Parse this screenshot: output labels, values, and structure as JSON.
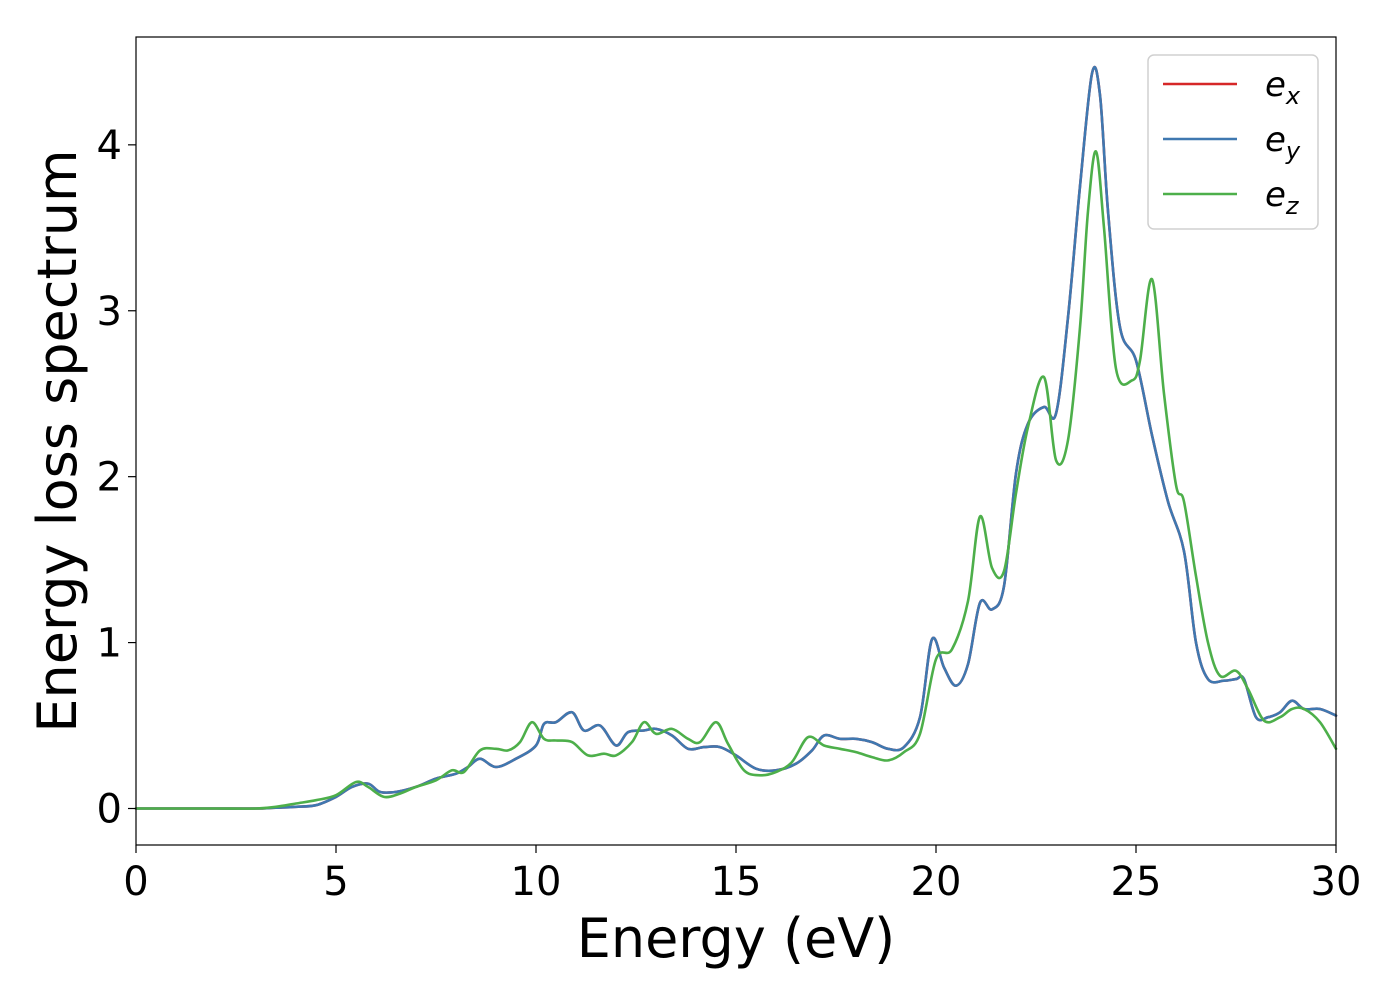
{
  "chart_data": {
    "type": "line",
    "title": "",
    "xlabel": "Energy (eV)",
    "ylabel": "Energy loss spectrum",
    "xlim": [
      0,
      30
    ],
    "ylim": [
      -0.22,
      4.65
    ],
    "xticks": [
      0,
      5,
      10,
      15,
      20,
      25,
      30
    ],
    "yticks": [
      0,
      1,
      2,
      3,
      4
    ],
    "grid": false,
    "legend_position": "top-right",
    "series": [
      {
        "name": "e",
        "subscript": "x",
        "color": "#d62728",
        "x": [
          0,
          1,
          2,
          3,
          3.5,
          4,
          4.5,
          5,
          5.4,
          5.8,
          6.1,
          6.5,
          7,
          7.5,
          8,
          8.3,
          8.6,
          9,
          9.5,
          10,
          10.2,
          10.5,
          10.9,
          11.2,
          11.6,
          12,
          12.3,
          12.7,
          13,
          13.4,
          13.8,
          14.2,
          14.6,
          15,
          15.5,
          16,
          16.5,
          16.9,
          17.2,
          17.6,
          18,
          18.4,
          18.8,
          19.2,
          19.6,
          19.9,
          20.2,
          20.5,
          20.8,
          21.1,
          21.4,
          21.7,
          22,
          22.3,
          22.7,
          23,
          23.3,
          23.6,
          23.9,
          24.1,
          24.3,
          24.6,
          25,
          25.4,
          25.8,
          26.2,
          26.5,
          26.8,
          27.2,
          27.5,
          27.7,
          28,
          28.3,
          28.6,
          28.9,
          29.2,
          29.6,
          30
        ],
        "values": [
          0,
          0,
          0,
          0,
          0.005,
          0.01,
          0.02,
          0.07,
          0.13,
          0.15,
          0.1,
          0.1,
          0.13,
          0.18,
          0.21,
          0.25,
          0.3,
          0.25,
          0.3,
          0.38,
          0.51,
          0.52,
          0.58,
          0.47,
          0.5,
          0.38,
          0.46,
          0.47,
          0.48,
          0.44,
          0.36,
          0.37,
          0.37,
          0.32,
          0.24,
          0.23,
          0.27,
          0.35,
          0.44,
          0.42,
          0.42,
          0.4,
          0.36,
          0.37,
          0.55,
          1.02,
          0.85,
          0.74,
          0.87,
          1.24,
          1.2,
          1.34,
          2.02,
          2.32,
          2.42,
          2.38,
          2.96,
          3.75,
          4.43,
          4.3,
          3.6,
          2.9,
          2.7,
          2.25,
          1.85,
          1.55,
          1.0,
          0.78,
          0.77,
          0.78,
          0.78,
          0.55,
          0.55,
          0.58,
          0.65,
          0.6,
          0.6,
          0.56
        ]
      },
      {
        "name": "e",
        "subscript": "y",
        "color": "#3f78b0",
        "x": [
          0,
          1,
          2,
          3,
          3.5,
          4,
          4.5,
          5,
          5.4,
          5.8,
          6.1,
          6.5,
          7,
          7.5,
          8,
          8.3,
          8.6,
          9,
          9.5,
          10,
          10.2,
          10.5,
          10.9,
          11.2,
          11.6,
          12,
          12.3,
          12.7,
          13,
          13.4,
          13.8,
          14.2,
          14.6,
          15,
          15.5,
          16,
          16.5,
          16.9,
          17.2,
          17.6,
          18,
          18.4,
          18.8,
          19.2,
          19.6,
          19.9,
          20.2,
          20.5,
          20.8,
          21.1,
          21.4,
          21.7,
          22,
          22.3,
          22.7,
          23,
          23.3,
          23.6,
          23.9,
          24.1,
          24.3,
          24.6,
          25,
          25.4,
          25.8,
          26.2,
          26.5,
          26.8,
          27.2,
          27.5,
          27.7,
          28,
          28.3,
          28.6,
          28.9,
          29.2,
          29.6,
          30
        ],
        "values": [
          0,
          0,
          0,
          0,
          0.005,
          0.01,
          0.02,
          0.07,
          0.13,
          0.15,
          0.1,
          0.1,
          0.13,
          0.18,
          0.21,
          0.25,
          0.3,
          0.25,
          0.3,
          0.38,
          0.51,
          0.52,
          0.58,
          0.47,
          0.5,
          0.38,
          0.46,
          0.47,
          0.48,
          0.44,
          0.36,
          0.37,
          0.37,
          0.32,
          0.24,
          0.23,
          0.27,
          0.35,
          0.44,
          0.42,
          0.42,
          0.4,
          0.36,
          0.37,
          0.55,
          1.02,
          0.85,
          0.74,
          0.87,
          1.24,
          1.2,
          1.34,
          2.02,
          2.32,
          2.42,
          2.38,
          2.96,
          3.75,
          4.43,
          4.3,
          3.6,
          2.9,
          2.7,
          2.25,
          1.85,
          1.55,
          1.0,
          0.78,
          0.77,
          0.78,
          0.78,
          0.55,
          0.55,
          0.58,
          0.65,
          0.6,
          0.6,
          0.56
        ]
      },
      {
        "name": "e",
        "subscript": "z",
        "color": "#4daf4a",
        "x": [
          0,
          1,
          2,
          3,
          3.5,
          4,
          4.5,
          5,
          5.5,
          5.8,
          6.2,
          6.6,
          7,
          7.5,
          7.9,
          8.2,
          8.6,
          9,
          9.3,
          9.6,
          9.9,
          10.2,
          10.5,
          10.9,
          11.3,
          11.7,
          12,
          12.4,
          12.7,
          13,
          13.4,
          13.8,
          14.1,
          14.5,
          14.8,
          15.2,
          15.6,
          16,
          16.4,
          16.8,
          17.2,
          17.6,
          18,
          18.4,
          18.8,
          19.2,
          19.6,
          20,
          20.4,
          20.8,
          21.1,
          21.4,
          21.7,
          22,
          22.3,
          22.7,
          23,
          23.3,
          23.6,
          23.8,
          24,
          24.2,
          24.5,
          24.9,
          25.1,
          25.4,
          25.7,
          26,
          26.2,
          26.5,
          26.8,
          27.1,
          27.5,
          27.8,
          28.2,
          28.6,
          28.9,
          29.2,
          29.6,
          30
        ],
        "values": [
          0,
          0,
          0,
          0,
          0.01,
          0.03,
          0.05,
          0.08,
          0.16,
          0.13,
          0.07,
          0.09,
          0.13,
          0.17,
          0.23,
          0.22,
          0.35,
          0.36,
          0.35,
          0.4,
          0.52,
          0.42,
          0.41,
          0.4,
          0.32,
          0.33,
          0.32,
          0.4,
          0.52,
          0.45,
          0.48,
          0.42,
          0.4,
          0.52,
          0.39,
          0.23,
          0.2,
          0.22,
          0.28,
          0.43,
          0.38,
          0.36,
          0.34,
          0.31,
          0.29,
          0.34,
          0.45,
          0.9,
          0.96,
          1.25,
          1.76,
          1.45,
          1.43,
          1.9,
          2.3,
          2.6,
          2.1,
          2.22,
          2.9,
          3.6,
          3.96,
          3.5,
          2.65,
          2.58,
          2.7,
          3.19,
          2.5,
          1.95,
          1.85,
          1.4,
          1.0,
          0.8,
          0.83,
          0.72,
          0.53,
          0.55,
          0.6,
          0.6,
          0.52,
          0.36
        ]
      }
    ]
  }
}
